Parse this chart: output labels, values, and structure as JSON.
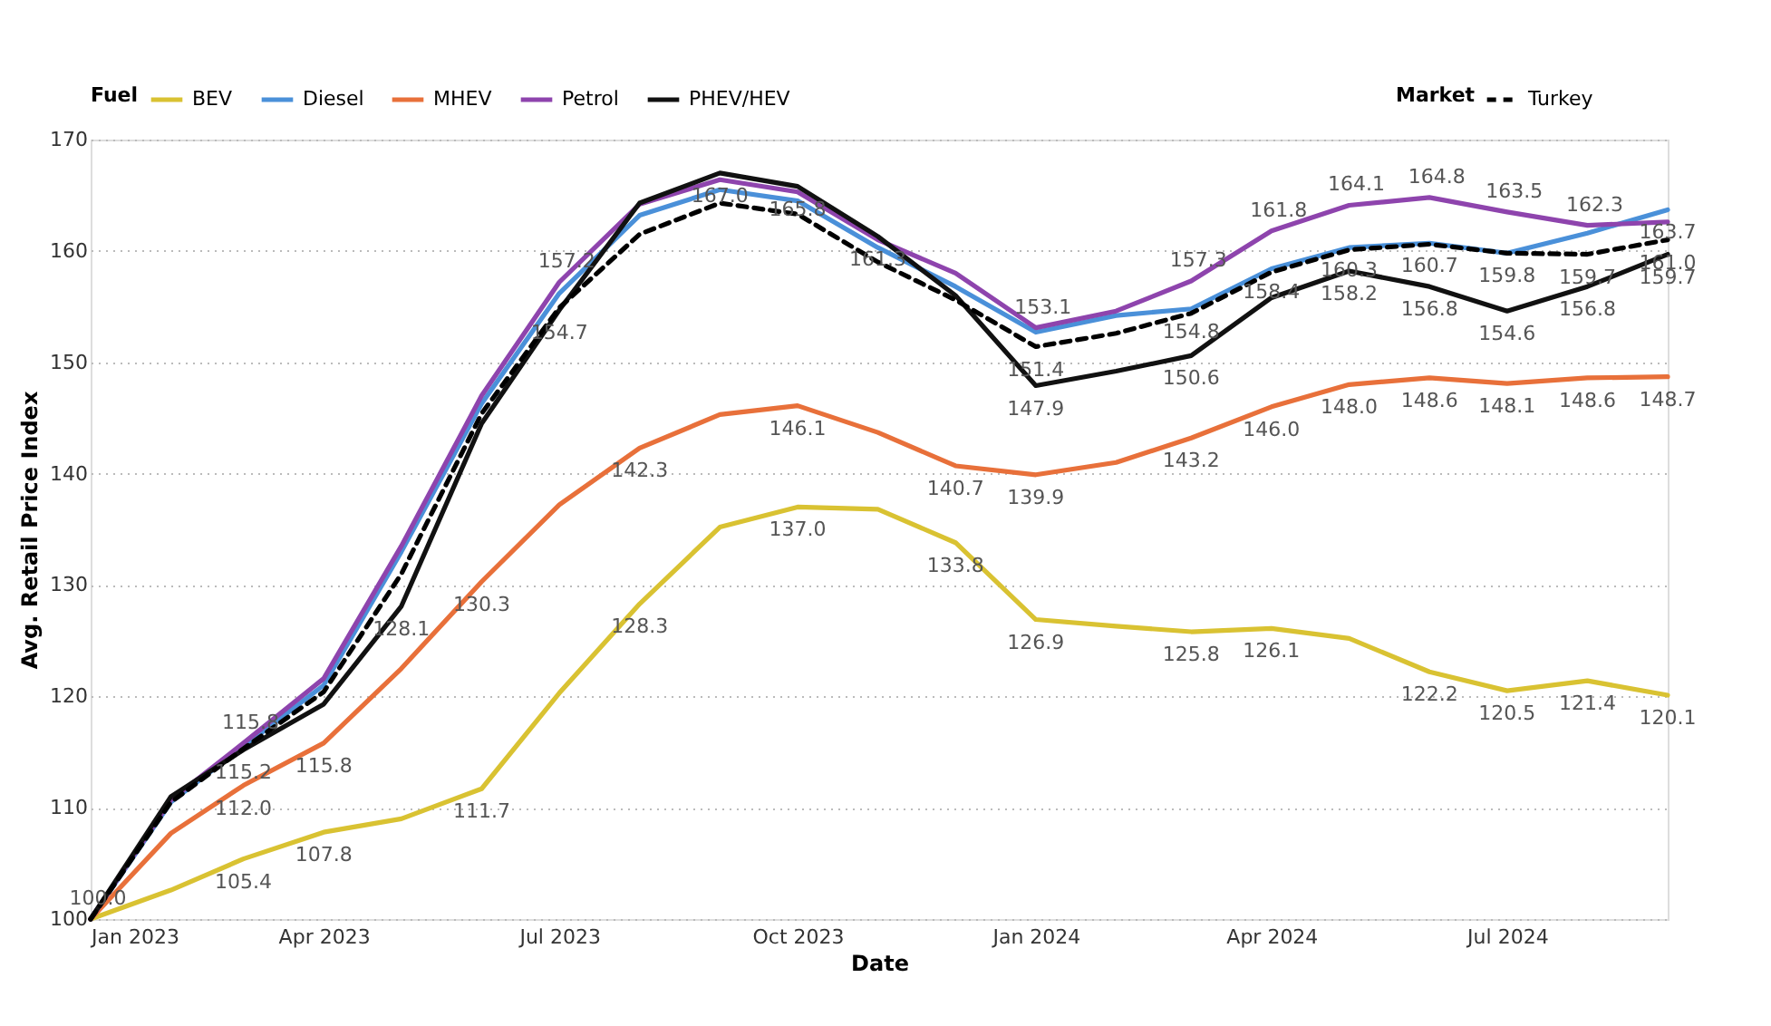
{
  "chart_data": {
    "type": "line",
    "xlabel": "Date",
    "ylabel": "Avg. Retail Price Index",
    "legend_title": "Fuel",
    "legend": "top",
    "annotations": [
      "Market"
    ],
    "grid": "y",
    "marker": "none",
    "x": [
      "2023-01",
      "2023-02",
      "2023-03",
      "2023-04",
      "2023-05",
      "2023-06",
      "2023-07",
      "2023-08",
      "2023-09",
      "2023-10",
      "2023-11",
      "2023-12",
      "2024-01",
      "2024-02",
      "2024-03",
      "2024-04",
      "2024-05",
      "2024-06",
      "2024-07",
      "2024-08",
      "2024-09"
    ],
    "xlim": [
      "2023-01",
      "2024-09"
    ],
    "xticks": [
      {
        "value": "2023-01",
        "label": "Jan 2023"
      },
      {
        "value": "2023-04",
        "label": "Apr 2023"
      },
      {
        "value": "2023-07",
        "label": "Jul 2023"
      },
      {
        "value": "2023-10",
        "label": "Oct 2023"
      },
      {
        "value": "2024-01",
        "label": "Jan 2024"
      },
      {
        "value": "2024-04",
        "label": "Apr 2024"
      },
      {
        "value": "2024-07",
        "label": "Jul 2024"
      }
    ],
    "ylim": [
      100,
      170
    ],
    "yticks": [
      100,
      110,
      120,
      130,
      140,
      150,
      160,
      170
    ],
    "series": [
      {
        "name": "BEV",
        "color": "#d9c232",
        "line_style": "solid",
        "values": [
          100.0,
          102.6,
          105.4,
          107.8,
          109.0,
          111.7,
          120.3,
          128.3,
          135.2,
          137.0,
          136.8,
          133.8,
          126.9,
          126.3,
          125.8,
          126.1,
          125.2,
          122.2,
          120.5,
          121.4,
          120.1
        ],
        "value_labels": [
          null,
          null,
          "105.4",
          "107.8",
          null,
          "111.7",
          null,
          "128.3",
          null,
          "137.0",
          null,
          "133.8",
          "126.9",
          null,
          "125.8",
          "126.1",
          null,
          "122.2",
          "120.5",
          "121.4",
          "120.1"
        ]
      },
      {
        "name": "Diesel",
        "color": "#4a90d9",
        "line_style": "solid",
        "values": [
          100.0,
          110.5,
          115.5,
          121.0,
          133.0,
          146.3,
          156.2,
          163.2,
          165.5,
          164.5,
          160.3,
          156.8,
          152.7,
          154.2,
          154.8,
          158.4,
          160.3,
          160.7,
          159.8,
          161.6,
          163.7
        ],
        "value_labels": [
          null,
          null,
          null,
          null,
          null,
          null,
          null,
          null,
          null,
          null,
          null,
          null,
          null,
          null,
          "154.8",
          "158.4",
          "160.3",
          "160.7",
          "159.8",
          null,
          "163.7"
        ]
      },
      {
        "name": "MHEV",
        "color": "#e8703a",
        "line_style": "solid",
        "values": [
          100.0,
          107.7,
          112.0,
          115.8,
          122.5,
          130.3,
          137.2,
          142.3,
          145.3,
          146.1,
          143.7,
          140.7,
          139.9,
          141.0,
          143.2,
          146.0,
          148.0,
          148.6,
          148.1,
          148.6,
          148.7
        ],
        "value_labels": [
          null,
          null,
          "112.0",
          "115.8",
          null,
          "130.3",
          null,
          "142.3",
          null,
          "146.1",
          null,
          "140.7",
          "139.9",
          null,
          "143.2",
          "146.0",
          "148.0",
          "148.6",
          "148.1",
          "148.6",
          "148.7"
        ]
      },
      {
        "name": "Petrol",
        "color": "#8e44ad",
        "line_style": "solid",
        "values": [
          100.0,
          110.7,
          115.8,
          121.6,
          133.5,
          147.0,
          157.2,
          164.2,
          166.4,
          165.3,
          161.0,
          158.0,
          153.1,
          154.6,
          157.3,
          161.8,
          164.1,
          164.8,
          163.5,
          162.3,
          162.6
        ],
        "value_labels": [
          null,
          null,
          "115.8",
          null,
          null,
          null,
          "157.2",
          null,
          null,
          null,
          null,
          null,
          "153.1",
          null,
          "157.3",
          "161.8",
          "164.1",
          "164.8",
          "163.5",
          "162.3",
          null
        ]
      },
      {
        "name": "PHEV/HEV",
        "color": "#111111",
        "line_style": "solid",
        "values": [
          100.0,
          111.0,
          115.2,
          119.3,
          128.1,
          144.5,
          154.7,
          164.3,
          167.0,
          165.8,
          161.3,
          156.0,
          147.9,
          149.2,
          150.6,
          155.8,
          158.2,
          156.8,
          154.6,
          156.8,
          159.7
        ],
        "value_labels": [
          "100.0",
          null,
          "115.2",
          null,
          "128.1",
          null,
          "154.7",
          null,
          "167.0",
          "165.8",
          "161.3",
          null,
          "147.9",
          null,
          "150.6",
          null,
          "158.2",
          "156.8",
          "154.6",
          "156.8",
          "159.7"
        ]
      },
      {
        "name": "Turkey",
        "color": "#000000",
        "line_style": "dashed",
        "values": [
          100.0,
          110.5,
          115.3,
          120.4,
          131.0,
          145.4,
          154.9,
          161.5,
          164.3,
          163.3,
          159.0,
          155.6,
          151.4,
          152.6,
          154.4,
          158.1,
          160.1,
          160.6,
          159.8,
          159.7,
          161.0
        ],
        "value_labels": [
          null,
          null,
          null,
          null,
          null,
          null,
          null,
          null,
          null,
          null,
          null,
          null,
          "151.4",
          null,
          null,
          null,
          null,
          null,
          null,
          "159.7",
          "161.0"
        ]
      }
    ]
  }
}
